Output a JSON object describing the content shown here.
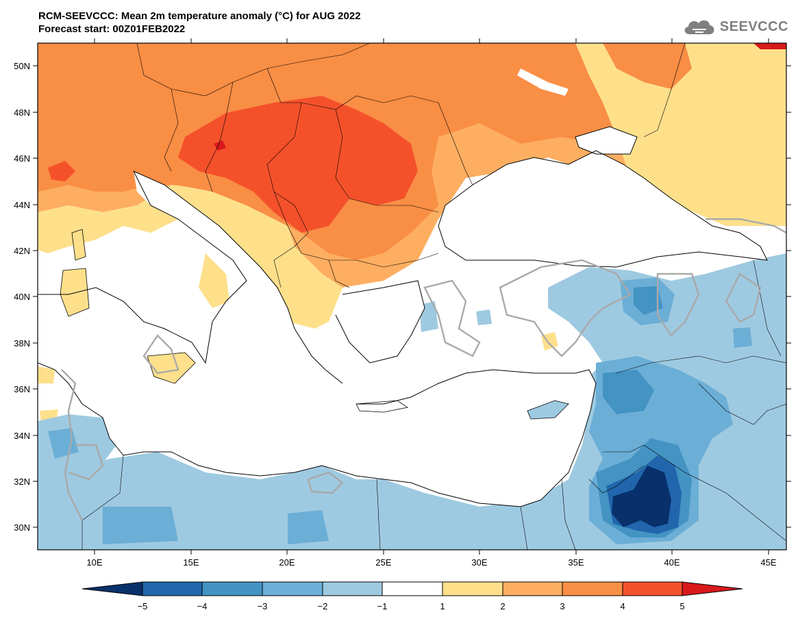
{
  "header": {
    "title_line1": "RCM-SEEVCCC: Mean 2m temperature anomaly (°C) for AUG 2022",
    "title_line2": "Forecast start: 00Z01FEB2022"
  },
  "logo": {
    "text": "SEEVCCC",
    "icon": "cloud-icon"
  },
  "map": {
    "lat_labels": [
      "50N",
      "48N",
      "46N",
      "44N",
      "42N",
      "40N",
      "38N",
      "36N",
      "34N",
      "32N",
      "30N"
    ],
    "lon_labels": [
      "10E",
      "15E",
      "20E",
      "25E",
      "30E",
      "35E",
      "40E",
      "45E"
    ],
    "colorbar_labels": [
      "−5",
      "−4",
      "−3",
      "−2",
      "−1",
      "1",
      "2",
      "3",
      "4",
      "5"
    ],
    "colors": {
      "lt_-5": "#08306b",
      "-5_-4": "#2166ac",
      "-4_-3": "#4393c3",
      "-3_-2": "#6baed6",
      "-2_-1": "#9ecae1",
      "-1_1": "#ffffff",
      "1_2": "#fee08b",
      "2_3": "#fdae61",
      "3_4": "#f98e45",
      "4_5": "#f4512b",
      "gt_5": "#d7191c"
    }
  }
}
